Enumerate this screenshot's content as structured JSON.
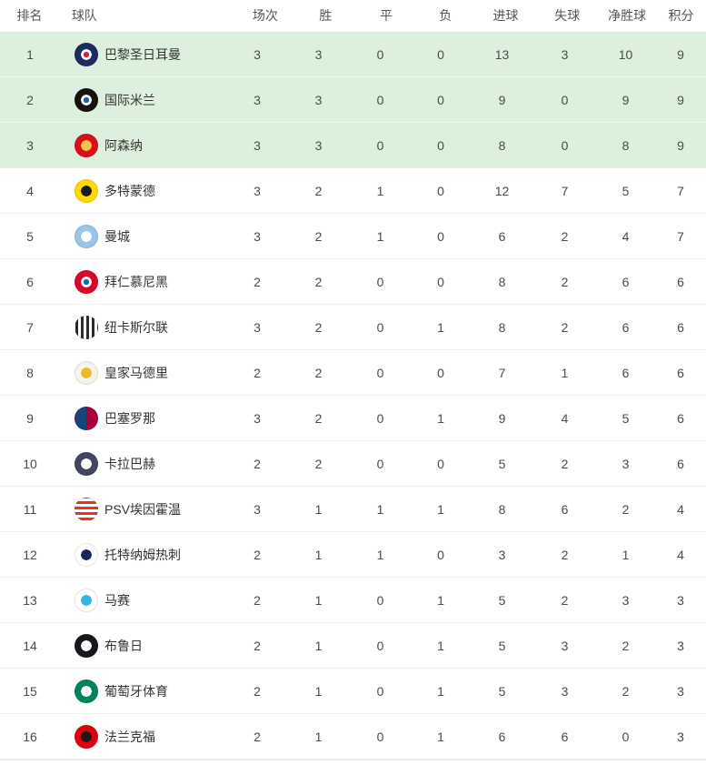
{
  "table": {
    "columns": [
      {
        "key": "rank",
        "label": "排名"
      },
      {
        "key": "team",
        "label": "球队"
      },
      {
        "key": "played",
        "label": "场次"
      },
      {
        "key": "win",
        "label": "胜"
      },
      {
        "key": "draw",
        "label": "平"
      },
      {
        "key": "loss",
        "label": "负"
      },
      {
        "key": "gf",
        "label": "进球"
      },
      {
        "key": "ga",
        "label": "失球"
      },
      {
        "key": "gd",
        "label": "净胜球"
      },
      {
        "key": "pts",
        "label": "积分"
      }
    ],
    "highlight_color": "#ddf0dd",
    "rows": [
      {
        "rank": "1",
        "name": "巴黎圣日耳曼",
        "highlight": true,
        "logo": {
          "icon": "psg-crest",
          "type": "ring",
          "c1": "#1b2b63",
          "c2": "#ffffff",
          "c3": "#da1f3d"
        },
        "played": "3",
        "win": "3",
        "draw": "0",
        "loss": "0",
        "gf": "13",
        "ga": "3",
        "gd": "10",
        "pts": "9"
      },
      {
        "rank": "2",
        "name": "国际米兰",
        "highlight": true,
        "logo": {
          "icon": "inter-milan-crest",
          "type": "ring",
          "c1": "#15120f",
          "c2": "#ffffff",
          "c3": "#1962a8"
        },
        "played": "3",
        "win": "3",
        "draw": "0",
        "loss": "0",
        "gf": "9",
        "ga": "0",
        "gd": "9",
        "pts": "9"
      },
      {
        "rank": "3",
        "name": "阿森纳",
        "highlight": true,
        "logo": {
          "icon": "arsenal-crest",
          "type": "disc",
          "c1": "#d6101c",
          "c2": "#f3c24e"
        },
        "played": "3",
        "win": "3",
        "draw": "0",
        "loss": "0",
        "gf": "8",
        "ga": "0",
        "gd": "8",
        "pts": "9"
      },
      {
        "rank": "4",
        "name": "多特蒙德",
        "logo": {
          "icon": "dortmund-crest",
          "type": "disc",
          "c1": "#ffd900",
          "c2": "#1a1a1a"
        },
        "played": "3",
        "win": "2",
        "draw": "1",
        "loss": "0",
        "gf": "12",
        "ga": "7",
        "gd": "5",
        "pts": "7"
      },
      {
        "rank": "5",
        "name": "曼城",
        "logo": {
          "icon": "man-city-crest",
          "type": "disc",
          "c1": "#98c5e9",
          "c2": "#ffffff"
        },
        "played": "3",
        "win": "2",
        "draw": "1",
        "loss": "0",
        "gf": "6",
        "ga": "2",
        "gd": "4",
        "pts": "7"
      },
      {
        "rank": "6",
        "name": "拜仁慕尼黑",
        "logo": {
          "icon": "bayern-munich-crest",
          "type": "ring",
          "c1": "#dc052d",
          "c2": "#ffffff",
          "c3": "#1766b2"
        },
        "played": "2",
        "win": "2",
        "draw": "0",
        "loss": "0",
        "gf": "8",
        "ga": "2",
        "gd": "6",
        "pts": "6"
      },
      {
        "rank": "7",
        "name": "纽卡斯尔联",
        "logo": {
          "icon": "newcastle-crest",
          "type": "stripes-v",
          "c1": "#2b2b2b",
          "c2": "#ffffff"
        },
        "played": "3",
        "win": "2",
        "draw": "0",
        "loss": "1",
        "gf": "8",
        "ga": "2",
        "gd": "6",
        "pts": "6"
      },
      {
        "rank": "8",
        "name": "皇家马德里",
        "logo": {
          "icon": "real-madrid-crest",
          "type": "disc",
          "c1": "#f7f3e8",
          "c2": "#f0b92d"
        },
        "played": "2",
        "win": "2",
        "draw": "0",
        "loss": "0",
        "gf": "7",
        "ga": "1",
        "gd": "6",
        "pts": "6"
      },
      {
        "rank": "9",
        "name": "巴塞罗那",
        "logo": {
          "icon": "barcelona-crest",
          "type": "halves",
          "c1": "#16457c",
          "c2": "#a6003c"
        },
        "played": "3",
        "win": "2",
        "draw": "0",
        "loss": "1",
        "gf": "9",
        "ga": "4",
        "gd": "5",
        "pts": "6"
      },
      {
        "rank": "10",
        "name": "卡拉巴赫",
        "logo": {
          "icon": "qarabag-crest",
          "type": "disc",
          "c1": "#43465f",
          "c2": "#ffffff"
        },
        "played": "2",
        "win": "2",
        "draw": "0",
        "loss": "0",
        "gf": "5",
        "ga": "2",
        "gd": "3",
        "pts": "6"
      },
      {
        "rank": "11",
        "name": "PSV埃因霍温",
        "logo": {
          "icon": "psv-eindhoven-crest",
          "type": "stripes-h",
          "c1": "#ee3124",
          "c2": "#ffffff"
        },
        "played": "3",
        "win": "1",
        "draw": "1",
        "loss": "1",
        "gf": "8",
        "ga": "6",
        "gd": "2",
        "pts": "4"
      },
      {
        "rank": "12",
        "name": "托特纳姆热刺",
        "logo": {
          "icon": "tottenham-crest",
          "type": "disc",
          "c1": "#ffffff",
          "c2": "#1b2653"
        },
        "played": "2",
        "win": "1",
        "draw": "1",
        "loss": "0",
        "gf": "3",
        "ga": "2",
        "gd": "1",
        "pts": "4"
      },
      {
        "rank": "13",
        "name": "马赛",
        "logo": {
          "icon": "marseille-crest",
          "type": "disc",
          "c1": "#ffffff",
          "c2": "#35b6e4"
        },
        "played": "2",
        "win": "1",
        "draw": "0",
        "loss": "1",
        "gf": "5",
        "ga": "2",
        "gd": "3",
        "pts": "3"
      },
      {
        "rank": "14",
        "name": "布鲁日",
        "logo": {
          "icon": "club-brugge-crest",
          "type": "disc",
          "c1": "#17181d",
          "c2": "#ffffff"
        },
        "played": "2",
        "win": "1",
        "draw": "0",
        "loss": "1",
        "gf": "5",
        "ga": "3",
        "gd": "2",
        "pts": "3"
      },
      {
        "rank": "15",
        "name": "葡萄牙体育",
        "logo": {
          "icon": "sporting-cp-crest",
          "type": "disc",
          "c1": "#00845c",
          "c2": "#ffffff"
        },
        "played": "2",
        "win": "1",
        "draw": "0",
        "loss": "1",
        "gf": "5",
        "ga": "3",
        "gd": "2",
        "pts": "3"
      },
      {
        "rank": "16",
        "name": "法兰克福",
        "logo": {
          "icon": "frankfurt-crest",
          "type": "disc",
          "c1": "#e1000f",
          "c2": "#1a1a1a"
        },
        "played": "2",
        "win": "1",
        "draw": "0",
        "loss": "1",
        "gf": "6",
        "ga": "6",
        "gd": "0",
        "pts": "3"
      }
    ]
  }
}
